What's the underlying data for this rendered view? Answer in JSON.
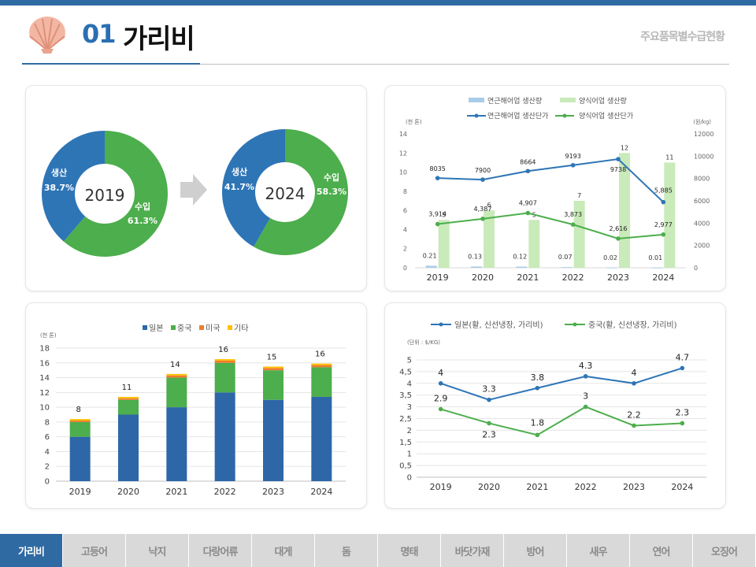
{
  "header": {
    "title_num": "01",
    "title_text": "가리비",
    "subtitle": "주요품목별수급현황"
  },
  "colors": {
    "blue": "#2e75b6",
    "green": "#4cae4c",
    "light_blue": "#a9cce8",
    "light_green": "#c9eab9",
    "orange": "#ed7d31",
    "yellow": "#ffc000",
    "dark_blue": "#2d67a8"
  },
  "nav": {
    "items": [
      "가리비",
      "고등어",
      "낙지",
      "다랑어류",
      "대게",
      "돔",
      "명태",
      "바닷가재",
      "방어",
      "새우",
      "연어",
      "오징어"
    ],
    "active_index": 0
  },
  "chart_data": [
    {
      "type": "pie",
      "variant": "donut",
      "center_label": "2019",
      "slices": [
        {
          "label": "생산",
          "pct_label": "38.7%",
          "value": 38.7,
          "color": "#2e75b6"
        },
        {
          "label": "수입",
          "pct_label": "61.3%",
          "value": 61.3,
          "color": "#4cae4c"
        }
      ]
    },
    {
      "type": "pie",
      "variant": "donut",
      "center_label": "2024",
      "slices": [
        {
          "label": "생산",
          "pct_label": "41.7%",
          "value": 41.7,
          "color": "#2e75b6"
        },
        {
          "label": "수입",
          "pct_label": "58.3%",
          "value": 58.3,
          "color": "#4cae4c"
        }
      ]
    },
    {
      "type": "bar",
      "combo": "bar+line",
      "categories": [
        "2019",
        "2020",
        "2021",
        "2022",
        "2023",
        "2024"
      ],
      "y_left_unit": "(천 톤)",
      "y_right_unit": "(원/kg)",
      "ylim_left": [
        0,
        14
      ],
      "yticks_left": [
        "0",
        "2",
        "4",
        "6",
        "8",
        "10",
        "12",
        "14"
      ],
      "ylim_right": [
        0,
        12000
      ],
      "yticks_right": [
        "0",
        "2000",
        "4000",
        "6000",
        "8000",
        "10000",
        "12000"
      ],
      "bar_series": [
        {
          "name": "연근해어업 생산량",
          "color": "#a9cce8",
          "values": [
            0.21,
            0.13,
            0.12,
            0.07,
            0.02,
            0.01
          ],
          "labels": [
            "0.21",
            "0.13",
            "0.12",
            "0.07",
            "0.02",
            "0.01"
          ]
        },
        {
          "name": "양식어업 생산량",
          "color": "#c9eab9",
          "values": [
            5,
            6,
            5,
            7,
            12,
            11
          ],
          "labels": [
            "5",
            "6",
            "5",
            "7",
            "12",
            "11"
          ]
        }
      ],
      "line_series": [
        {
          "name": "연근해어업 생산단가",
          "color": "#2e75b6",
          "values": [
            8035,
            7900,
            8664,
            9193,
            9738,
            5885
          ],
          "labels": [
            "8035",
            "7900",
            "8664",
            "9193",
            "9738",
            "5,885"
          ]
        },
        {
          "name": "양식어업 생산단가",
          "color": "#4cae4c",
          "values": [
            3914,
            4387,
            4907,
            3873,
            2616,
            2977
          ],
          "labels": [
            "3,914",
            "4,387",
            "4,907",
            "3,873",
            "2,616",
            "2,977"
          ]
        }
      ]
    },
    {
      "type": "bar",
      "stacked": true,
      "categories": [
        "2019",
        "2020",
        "2021",
        "2022",
        "2023",
        "2024"
      ],
      "y_unit": "(천 톤)",
      "ylim": [
        0,
        18
      ],
      "yticks": [
        "0",
        "2",
        "4",
        "6",
        "8",
        "10",
        "12",
        "14",
        "16",
        "18"
      ],
      "series": [
        {
          "name": "일본",
          "color": "#2d67a8",
          "values": [
            6,
            9,
            10,
            12,
            11,
            11.4
          ]
        },
        {
          "name": "중국",
          "color": "#4cae4c",
          "values": [
            2,
            2,
            4,
            4,
            4,
            4
          ]
        },
        {
          "name": "미국",
          "color": "#ed7d31",
          "values": [
            0.2,
            0.2,
            0.3,
            0.3,
            0.3,
            0.3
          ]
        },
        {
          "name": "기타",
          "color": "#ffc000",
          "values": [
            0.2,
            0.2,
            0.2,
            0.2,
            0.2,
            0.2
          ]
        }
      ],
      "total_labels": [
        "8",
        "11",
        "14",
        "16",
        "15",
        "16"
      ]
    },
    {
      "type": "line",
      "categories": [
        "2019",
        "2020",
        "2021",
        "2022",
        "2023",
        "2024"
      ],
      "y_unit": "(단위 : $/KG)",
      "ylim": [
        0,
        5
      ],
      "yticks": [
        "0",
        "0,5",
        "1",
        "1,5",
        "2",
        "2,5",
        "3",
        "3,5",
        "4",
        "4,5",
        "5"
      ],
      "series": [
        {
          "name": "일본(활, 신선냉장, 가리비)",
          "color": "#2e75b6",
          "values": [
            4,
            3.3,
            3.8,
            4.3,
            4,
            4.65
          ],
          "labels": [
            "4",
            "3.3",
            "3.8",
            "4.3",
            "4",
            "4.7"
          ]
        },
        {
          "name": "중국(활, 신선냉장, 가리비)",
          "color": "#4cae4c",
          "values": [
            2.9,
            2.3,
            1.8,
            3,
            2.2,
            2.3
          ],
          "labels": [
            "2.9",
            "2.3",
            "1.8",
            "3",
            "2.2",
            "2.3"
          ]
        }
      ]
    }
  ]
}
